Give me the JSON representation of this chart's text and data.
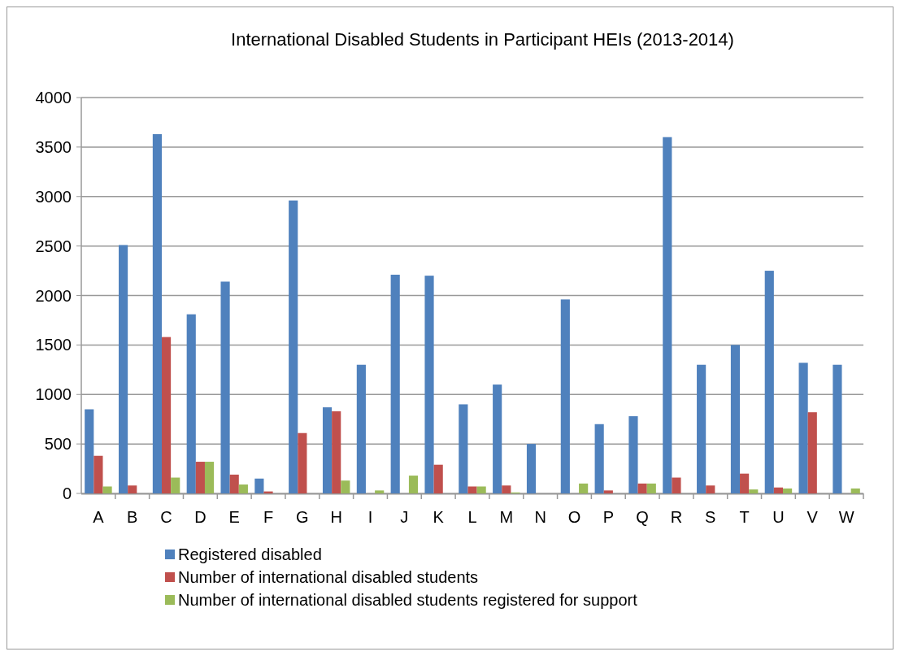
{
  "chart_data": {
    "type": "bar",
    "title": "International Disabled Students in Participant HEIs (2013-2014)",
    "categories": [
      "A",
      "B",
      "C",
      "D",
      "E",
      "F",
      "G",
      "H",
      "I",
      "J",
      "K",
      "L",
      "M",
      "N",
      "O",
      "P",
      "Q",
      "R",
      "S",
      "T",
      "U",
      "V",
      "W"
    ],
    "series": [
      {
        "name": "Registered disabled",
        "color": "#4f81bd",
        "values": [
          850,
          2510,
          3630,
          1810,
          2140,
          150,
          2960,
          870,
          1300,
          2210,
          2200,
          900,
          1100,
          500,
          1960,
          700,
          780,
          3600,
          1300,
          1500,
          2250,
          1320,
          1300
        ]
      },
      {
        "name": "Number of international disabled students",
        "color": "#c0504d",
        "values": [
          380,
          80,
          1580,
          320,
          190,
          20,
          610,
          830,
          0,
          0,
          290,
          70,
          80,
          0,
          0,
          30,
          100,
          160,
          80,
          200,
          60,
          820,
          0
        ]
      },
      {
        "name": "Number of international disabled students registered for support",
        "color": "#9bbb59",
        "values": [
          70,
          0,
          160,
          320,
          90,
          0,
          0,
          130,
          30,
          180,
          0,
          70,
          10,
          0,
          100,
          0,
          100,
          0,
          0,
          40,
          50,
          0,
          50
        ]
      }
    ],
    "ylim": [
      0,
      4000
    ],
    "yticks": [
      0,
      500,
      1000,
      1500,
      2000,
      2500,
      3000,
      3500,
      4000
    ],
    "grid": "y",
    "legend": "bottom"
  }
}
